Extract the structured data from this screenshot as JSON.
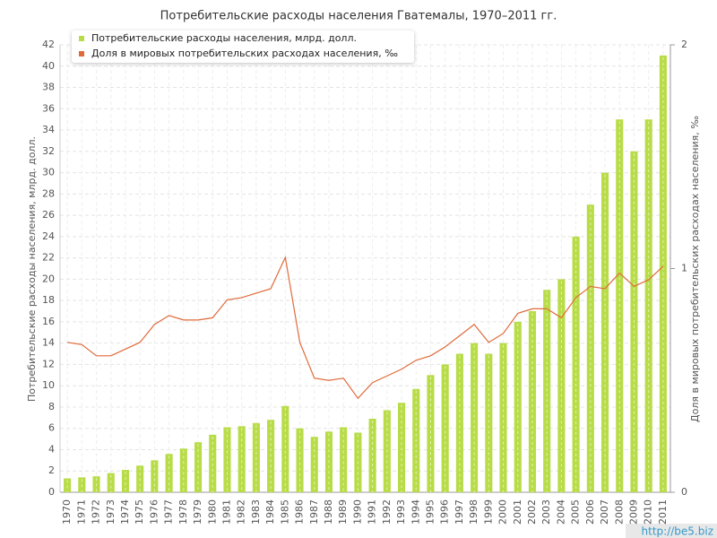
{
  "chart_data": {
    "type": "bar_line",
    "title": "Потребительские расходы населения Гватемалы, 1970–2011 гг.",
    "y_label": "Потребительские расходы населения, млрд. долл.",
    "y2_label": "Доля в мировых потребительских расходах населения, ‰",
    "watermark": "http://be5.biz",
    "categories": [
      "1970",
      "1971",
      "1972",
      "1973",
      "1974",
      "1975",
      "1976",
      "1977",
      "1978",
      "1979",
      "1980",
      "1981",
      "1982",
      "1983",
      "1984",
      "1985",
      "1986",
      "1987",
      "1988",
      "1989",
      "1990",
      "1991",
      "1992",
      "1993",
      "1994",
      "1995",
      "1996",
      "1997",
      "1998",
      "1999",
      "2000",
      "2001",
      "2002",
      "2003",
      "2004",
      "2005",
      "2006",
      "2007",
      "2008",
      "2009",
      "2010",
      "2011"
    ],
    "series": [
      {
        "name": "Потребительские расходы населения, млрд. долл.",
        "type": "bar",
        "color": "#b8dc48",
        "values": [
          1.3,
          1.4,
          1.5,
          1.8,
          2.1,
          2.5,
          3.0,
          3.6,
          4.1,
          4.7,
          5.4,
          6.1,
          6.2,
          6.5,
          6.8,
          8.1,
          6.0,
          5.2,
          5.7,
          6.1,
          5.6,
          6.9,
          7.7,
          8.4,
          9.7,
          11,
          12,
          13,
          14,
          13,
          14,
          16,
          17,
          19,
          20,
          24,
          27,
          30,
          35,
          32,
          35,
          41
        ]
      },
      {
        "name": "Доля в мировых потребительских расходах населения, ‰",
        "type": "line",
        "axis": "y2",
        "color": "#e06a3a",
        "values": [
          0.67,
          0.66,
          0.61,
          0.61,
          0.64,
          0.67,
          0.75,
          0.79,
          0.77,
          0.77,
          0.78,
          0.86,
          0.87,
          0.89,
          0.91,
          1.05,
          0.67,
          0.51,
          0.5,
          0.51,
          0.42,
          0.49,
          0.52,
          0.55,
          0.59,
          0.61,
          0.65,
          0.7,
          0.75,
          0.67,
          0.71,
          0.8,
          0.82,
          0.82,
          0.78,
          0.87,
          0.92,
          0.91,
          0.98,
          0.92,
          0.95,
          1.01
        ]
      }
    ],
    "ylim": [
      0,
      42
    ],
    "yticks": [
      0,
      2,
      4,
      6,
      8,
      10,
      12,
      14,
      16,
      18,
      20,
      22,
      24,
      26,
      28,
      30,
      32,
      34,
      36,
      38,
      40,
      42
    ],
    "y2lim": [
      0,
      2
    ],
    "y2ticks": [
      0,
      1,
      2
    ],
    "grid": true
  }
}
